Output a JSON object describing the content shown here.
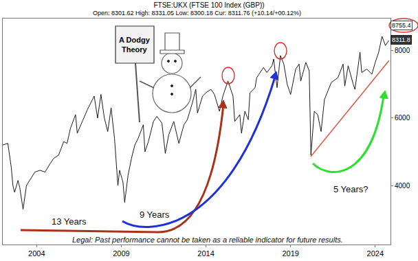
{
  "chart_data": {
    "type": "line",
    "title": "FTSE:UKX (FTSE 100 Index (GBP))",
    "subtitle": "Open: 8301.62 High: 8331.05 Low: 8300.18 Cur: 8311.76 (+10.14/+00.12%)",
    "x": [
      2002.0,
      2002.3,
      2002.5,
      2002.6,
      2002.7,
      2002.9,
      2003.0,
      2003.2,
      2003.4,
      2003.6,
      2003.9,
      2004.2,
      2004.5,
      2004.8,
      2005.0,
      2005.3,
      2005.6,
      2005.8,
      2006.0,
      2006.3,
      2006.4,
      2006.7,
      2007.0,
      2007.4,
      2007.6,
      2007.8,
      2008.0,
      2008.2,
      2008.4,
      2008.6,
      2008.8,
      2008.9,
      2009.1,
      2009.2,
      2009.4,
      2009.6,
      2009.8,
      2010.0,
      2010.3,
      2010.4,
      2010.6,
      2010.9,
      2011.1,
      2011.4,
      2011.6,
      2011.8,
      2012.1,
      2012.4,
      2012.7,
      2012.9,
      2013.2,
      2013.4,
      2013.5,
      2013.8,
      2014.0,
      2014.3,
      2014.5,
      2014.8,
      2015.0,
      2015.3,
      2015.6,
      2015.7,
      2016.0,
      2016.1,
      2016.3,
      2016.5,
      2016.6,
      2016.9,
      2017.0,
      2017.4,
      2017.6,
      2017.9,
      2018.0,
      2018.2,
      2018.4,
      2018.6,
      2018.8,
      2019.0,
      2019.3,
      2019.5,
      2019.6,
      2019.9,
      2020.1,
      2020.2,
      2020.4,
      2020.6,
      2020.8,
      2021.0,
      2021.4,
      2021.8,
      2022.1,
      2022.2,
      2022.4,
      2022.7,
      2022.8,
      2023.1,
      2023.2,
      2023.5,
      2023.8,
      2024.0,
      2024.2,
      2024.4,
      2024.6,
      2024.8
    ],
    "values": [
      5200,
      5250,
      4550,
      4000,
      3800,
      4150,
      3950,
      3300,
      4000,
      4150,
      4400,
      4450,
      4400,
      4650,
      4800,
      4900,
      5300,
      5250,
      5700,
      6100,
      5550,
      5900,
      6250,
      6650,
      6000,
      6700,
      6000,
      5600,
      6300,
      5400,
      4000,
      4450,
      4100,
      3500,
      4300,
      4800,
      5200,
      5400,
      5800,
      5000,
      5300,
      5900,
      6050,
      5850,
      4950,
      5500,
      5900,
      5250,
      5800,
      5950,
      6450,
      6850,
      6150,
      6650,
      6750,
      6850,
      6700,
      6200,
      6650,
      7100,
      6650,
      5900,
      6100,
      5550,
      6200,
      5950,
      6750,
      6900,
      7200,
      7500,
      7350,
      7550,
      7750,
      6900,
      7850,
      7600,
      7000,
      6700,
      7450,
      7600,
      7100,
      7650,
      7400,
      4900,
      6200,
      6100,
      5600,
      6550,
      7050,
      7200,
      7600,
      6950,
      7550,
      7000,
      6850,
      7950,
      7350,
      7450,
      7300,
      7650,
      7950,
      8420,
      8150,
      8300
    ],
    "color": "#000000",
    "xlim": [
      2002.0,
      2024.9
    ],
    "xticks": [
      2004,
      2009,
      2014,
      2019,
      2024
    ],
    "ylim": [
      2250,
      8950
    ],
    "yticks": [
      4000,
      6000,
      8000
    ],
    "grid": false,
    "price_labels": [
      8755.4,
      8311.8
    ],
    "annotations": [
      "13 Years",
      "9 Years",
      "5 Years?"
    ],
    "sign_text": [
      "A Dodgy",
      "Theory"
    ],
    "legal": "Legal: Past performance cannot be taken as a reliable indicator for future results."
  }
}
